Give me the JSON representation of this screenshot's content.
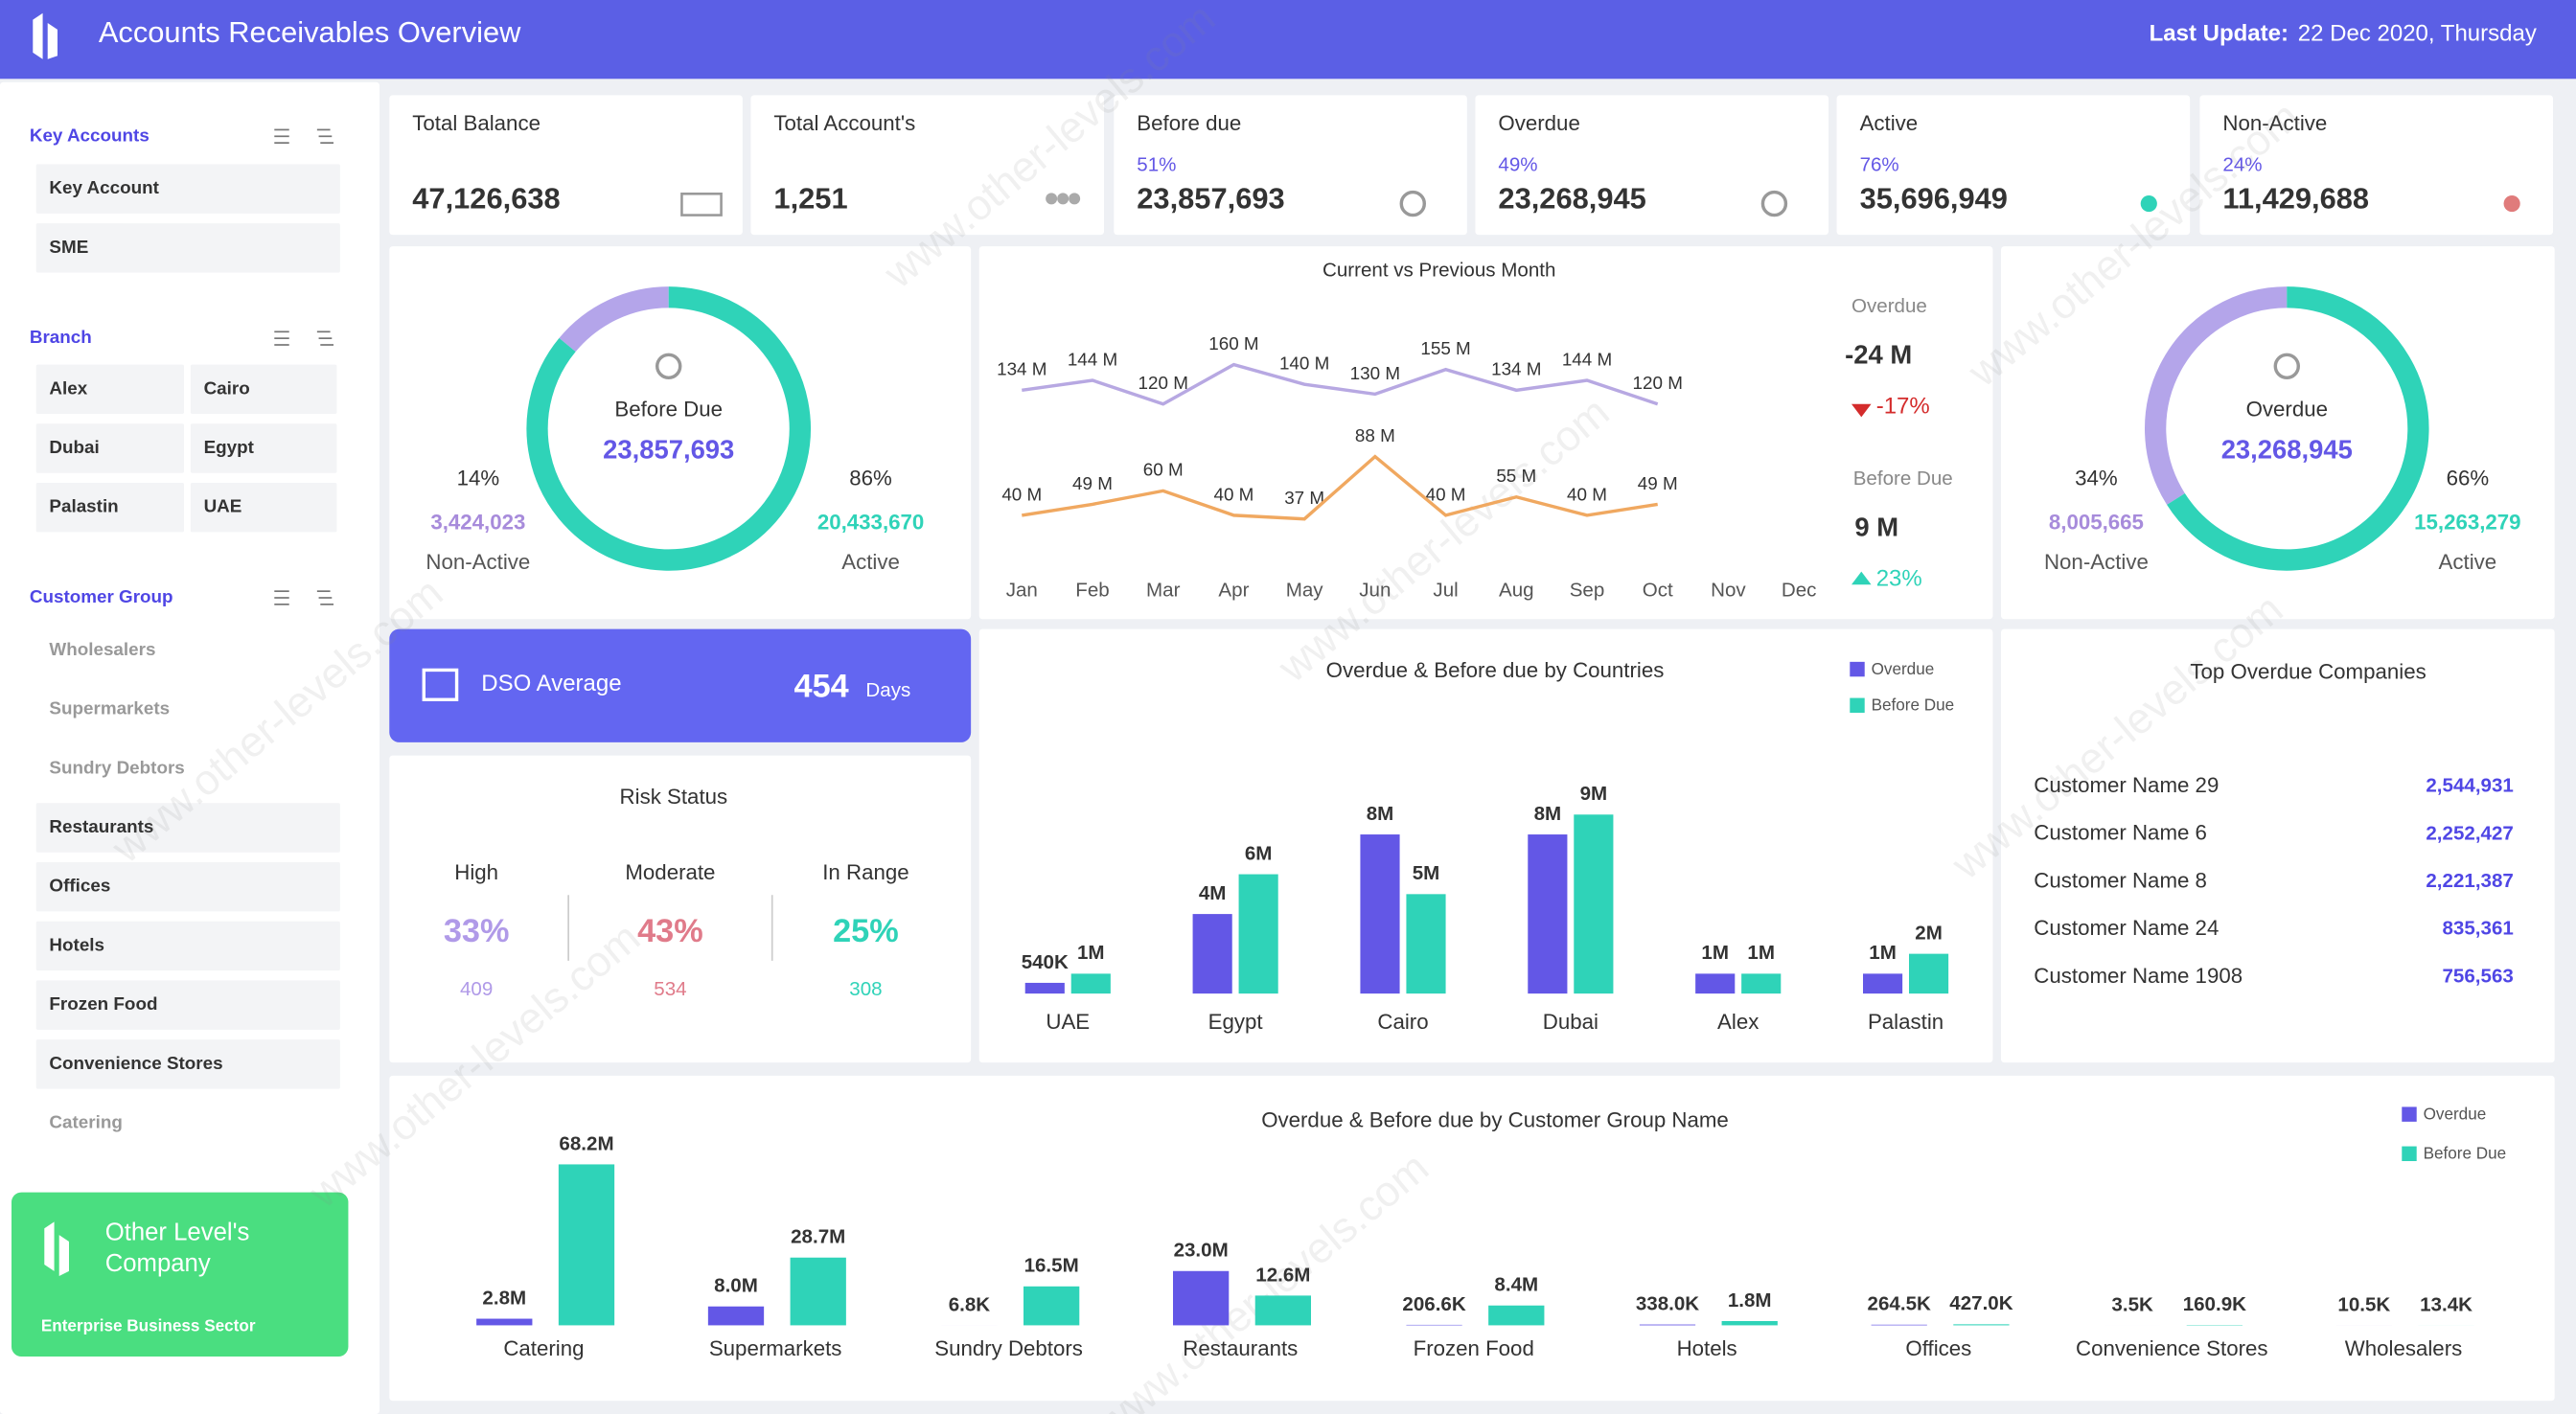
{
  "header": {
    "title": "Accounts Receivables Overview",
    "update_label": "Last Update:",
    "update": "22 Dec 2020, Thursday"
  },
  "watermark": "www.other-levels.com",
  "sidebar": {
    "sections": [
      {
        "title": "Key Accounts",
        "items": [
          "Key Account",
          "SME"
        ]
      },
      {
        "title": "Branch",
        "items": [
          "Alex",
          "Cairo",
          "Dubai",
          "Egypt",
          "Palastin",
          "UAE"
        ]
      },
      {
        "title": "Customer Group",
        "items": [
          "Wholesalers",
          "Supermarkets",
          "Sundry Debtors",
          "Restaurants",
          "Offices",
          "Hotels",
          "Frozen Food",
          "Convenience Stores",
          "Catering"
        ]
      }
    ],
    "company": {
      "name": "Other Level's Company",
      "sector": "Enterprise Business Sector"
    }
  },
  "kpis": [
    {
      "label": "Total Balance",
      "value": "47,126,638"
    },
    {
      "label": "Total Account's",
      "value": "1,251"
    },
    {
      "label": "Before due",
      "pct": "51%",
      "value": "23,857,693"
    },
    {
      "label": "Overdue",
      "pct": "49%",
      "value": "23,268,945"
    },
    {
      "label": "Active",
      "pct": "76%",
      "value": "35,696,949"
    },
    {
      "label": "Non-Active",
      "pct": "24%",
      "value": "11,429,688"
    }
  ],
  "dso": {
    "label": "DSO Average",
    "value": "454",
    "unit": "Days"
  },
  "risk": {
    "title": "Risk Status",
    "columns": [
      {
        "label": "High",
        "pct": "33%",
        "count": "409"
      },
      {
        "label": "Moderate",
        "pct": "43%",
        "count": "534"
      },
      {
        "label": "In Range",
        "pct": "25%",
        "count": "308"
      }
    ]
  },
  "monthly_change": {
    "items": [
      {
        "label": "Overdue",
        "value": "-24 M",
        "change": "-17%"
      },
      {
        "label": "Before Due",
        "value": "9 M",
        "change": "23%"
      }
    ]
  },
  "top_companies": {
    "title": "Top Overdue Companies",
    "rows": [
      [
        "Customer Name 29",
        "2,544,931"
      ],
      [
        "Customer Name 6",
        "2,252,427"
      ],
      [
        "Customer Name 8",
        "2,221,387"
      ],
      [
        "Customer Name 24",
        "835,361"
      ],
      [
        "Customer Name 1908",
        "756,563"
      ]
    ]
  },
  "chart_data": [
    {
      "type": "donut",
      "center_label": "Before Due",
      "center_value": "23,857,693",
      "categories": [
        "Non-Active",
        "Active"
      ],
      "values": [
        14,
        86
      ],
      "value_labels": [
        "14%",
        "86%"
      ],
      "amounts": [
        "3,424,023",
        "20,433,670"
      ],
      "colors": [
        "#b4a5ea",
        "#2fd3b8"
      ]
    },
    {
      "type": "line",
      "title": "Current vs Previous Month",
      "categories": [
        "Jan",
        "Feb",
        "Mar",
        "Apr",
        "May",
        "Jun",
        "Jul",
        "Aug",
        "Sep",
        "Oct",
        "Nov",
        "Dec"
      ],
      "series": [
        {
          "color": "#b7a8e2",
          "values": [
            134,
            144,
            120,
            160,
            140,
            130,
            155,
            134,
            144,
            120,
            null,
            null
          ],
          "value_labels": [
            "134 M",
            "144 M",
            "120 M",
            "160 M",
            "140 M",
            "130 M",
            "155 M",
            "134 M",
            "144 M",
            "120 M",
            null,
            null
          ]
        },
        {
          "color": "#f0a860",
          "values": [
            40,
            49,
            60,
            40,
            37,
            88,
            40,
            55,
            40,
            49,
            null,
            null
          ],
          "value_labels": [
            "40 M",
            "49 M",
            "60 M",
            "40 M",
            "37 M",
            "88 M",
            "40 M",
            "55 M",
            "40 M",
            "49 M",
            null,
            null
          ]
        }
      ]
    },
    {
      "type": "donut",
      "center_label": "Overdue",
      "center_value": "23,268,945",
      "categories": [
        "Non-Active",
        "Active"
      ],
      "values": [
        34,
        66
      ],
      "value_labels": [
        "34%",
        "66%"
      ],
      "amounts": [
        "8,005,665",
        "15,263,279"
      ],
      "colors": [
        "#b4a5ea",
        "#2fd3b8"
      ]
    },
    {
      "type": "bar",
      "title": "Overdue & Before due by Countries",
      "categories": [
        "UAE",
        "Egypt",
        "Cairo",
        "Dubai",
        "Alex",
        "Palastin"
      ],
      "series": [
        {
          "name": "Overdue",
          "color": "#6357e6",
          "values": [
            0.54,
            4,
            8,
            8,
            1,
            1
          ],
          "value_labels": [
            "540K",
            "4M",
            "8M",
            "8M",
            "1M",
            "1M"
          ]
        },
        {
          "name": "Before Due",
          "color": "#2fd3b8",
          "values": [
            1,
            6,
            5,
            9,
            1,
            2
          ],
          "value_labels": [
            "1M",
            "6M",
            "5M",
            "9M",
            "1M",
            "2M"
          ]
        }
      ]
    },
    {
      "type": "bar",
      "title": "Overdue & Before due by Customer Group Name",
      "categories": [
        "Catering",
        "Supermarkets",
        "Sundry Debtors",
        "Restaurants",
        "Frozen Food",
        "Hotels",
        "Offices",
        "Convenience Stores",
        "Wholesalers"
      ],
      "series": [
        {
          "name": "Overdue",
          "color": "#6357e6",
          "values": [
            2800000,
            8000000,
            6800,
            23000000,
            206600,
            338000,
            264500,
            3500,
            10500
          ],
          "value_labels": [
            "2.8M",
            "8.0M",
            "6.8K",
            "23.0M",
            "206.6K",
            "338.0K",
            "264.5K",
            "3.5K",
            "10.5K"
          ]
        },
        {
          "name": "Before Due",
          "color": "#2fd3b8",
          "values": [
            68200000,
            28700000,
            16500000,
            12600000,
            8400000,
            1800000,
            427000,
            160900,
            13400
          ],
          "value_labels": [
            "68.2M",
            "28.7M",
            "16.5M",
            "12.6M",
            "8.4M",
            "1.8M",
            "427.0K",
            "160.9K",
            "13.4K"
          ]
        }
      ]
    }
  ]
}
